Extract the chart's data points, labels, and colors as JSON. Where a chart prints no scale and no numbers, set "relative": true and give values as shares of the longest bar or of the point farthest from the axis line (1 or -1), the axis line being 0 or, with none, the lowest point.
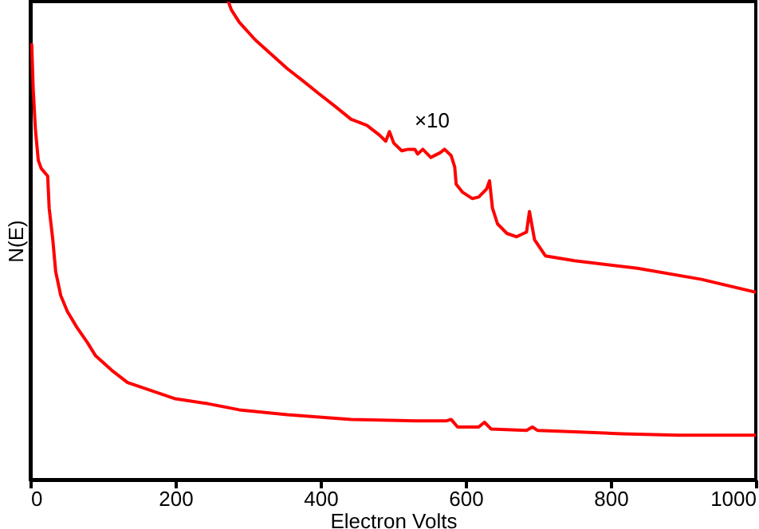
{
  "chart_data": {
    "type": "line",
    "relative": true,
    "xlabel": "Electron Volts",
    "ylabel": "N(E)",
    "xlim": [
      0,
      1000
    ],
    "xticks": [
      0,
      200,
      400,
      600,
      800,
      1000
    ],
    "grid": false,
    "marker": "none",
    "line_style": "solid",
    "annotations": [
      "×10"
    ],
    "series": [
      {
        "color": "#ff0000",
        "x": [
          2,
          4,
          7,
          11,
          15,
          24,
          26,
          31,
          35,
          42,
          51,
          64,
          79,
          90,
          112,
          134,
          167,
          200,
          244,
          288,
          354,
          442,
          530,
          574,
          580,
          589,
          618,
          626,
          635,
          684,
          692,
          699,
          750,
          815,
          892,
          1000
        ],
        "values": [
          0.91,
          0.817,
          0.734,
          0.668,
          0.651,
          0.635,
          0.568,
          0.502,
          0.435,
          0.385,
          0.352,
          0.319,
          0.286,
          0.259,
          0.229,
          0.203,
          0.186,
          0.169,
          0.159,
          0.146,
          0.136,
          0.126,
          0.123,
          0.123,
          0.126,
          0.11,
          0.11,
          0.12,
          0.106,
          0.103,
          0.11,
          0.103,
          0.1,
          0.096,
          0.093,
          0.093
        ]
      },
      {
        "color": "#ff0000",
        "x": [
          273,
          277,
          288,
          310,
          332,
          354,
          376,
          398,
          420,
          442,
          464,
          481,
          490,
          495,
          501,
          512,
          521,
          530,
          534,
          541,
          552,
          565,
          571,
          580,
          585,
          587,
          596,
          609,
          618,
          629,
          633,
          637,
          644,
          657,
          670,
          684,
          688,
          695,
          710,
          750,
          837,
          925,
          1000
        ],
        "values": [
          1.0,
          0.983,
          0.957,
          0.92,
          0.89,
          0.86,
          0.834,
          0.807,
          0.781,
          0.754,
          0.741,
          0.721,
          0.708,
          0.728,
          0.704,
          0.688,
          0.691,
          0.691,
          0.681,
          0.691,
          0.674,
          0.684,
          0.691,
          0.678,
          0.654,
          0.618,
          0.601,
          0.588,
          0.591,
          0.608,
          0.625,
          0.568,
          0.535,
          0.515,
          0.508,
          0.518,
          0.561,
          0.502,
          0.468,
          0.458,
          0.442,
          0.419,
          0.392
        ]
      }
    ]
  }
}
